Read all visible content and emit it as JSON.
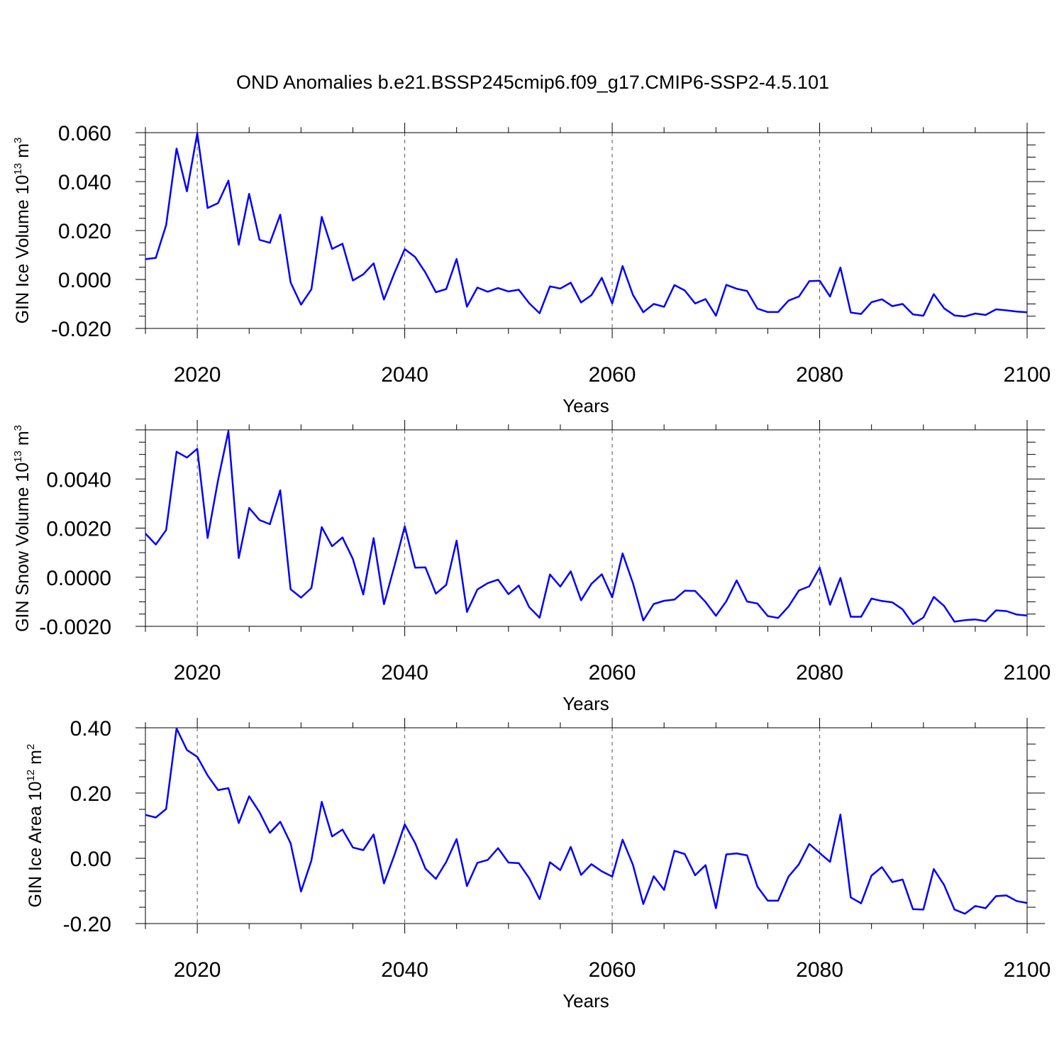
{
  "title": "OND Anomalies b.e21.BSSP245cmip6.f09_g17.CMIP6-SSP2-4.5.101",
  "colors": {
    "series": "#0000ff",
    "frame": "#000000",
    "grid": "#555555"
  },
  "chart_data": [
    {
      "type": "line",
      "xlabel": "Years",
      "ylabel": {
        "base": "GIN Ice Volume 10",
        "exp1": "13",
        "unit": " m",
        "exp2": "3"
      },
      "xlim": [
        2015,
        2100
      ],
      "ylim": [
        -0.02,
        0.06
      ],
      "xticks": [
        2020,
        2040,
        2060,
        2080,
        2100
      ],
      "yticks": [
        -0.02,
        0.0,
        0.02,
        0.04,
        0.06
      ],
      "ytick_labels": [
        "-0.020",
        "0.000",
        "0.020",
        "0.040",
        "0.060"
      ],
      "grid_x": [
        2020,
        2040,
        2060,
        2080
      ],
      "x": [
        2015,
        2016,
        2017,
        2018,
        2019,
        2020,
        2021,
        2022,
        2023,
        2024,
        2025,
        2026,
        2027,
        2028,
        2029,
        2030,
        2031,
        2032,
        2033,
        2034,
        2035,
        2036,
        2037,
        2038,
        2039,
        2040,
        2041,
        2042,
        2043,
        2044,
        2045,
        2046,
        2047,
        2048,
        2049,
        2050,
        2051,
        2052,
        2053,
        2054,
        2055,
        2056,
        2057,
        2058,
        2059,
        2060,
        2061,
        2062,
        2063,
        2064,
        2065,
        2066,
        2067,
        2068,
        2069,
        2070,
        2071,
        2072,
        2073,
        2074,
        2075,
        2076,
        2077,
        2078,
        2079,
        2080,
        2081,
        2082,
        2083,
        2084,
        2085,
        2086,
        2087,
        2088,
        2089,
        2090,
        2091,
        2092,
        2093,
        2094,
        2095,
        2096,
        2097,
        2098,
        2099,
        2100
      ],
      "values": [
        0.0083,
        0.0088,
        0.0222,
        0.0535,
        0.036,
        0.0597,
        0.0292,
        0.0312,
        0.0404,
        0.0142,
        0.035,
        0.0162,
        0.015,
        0.0265,
        -0.0012,
        -0.0103,
        -0.004,
        0.0256,
        0.0125,
        0.0146,
        -0.0004,
        0.0021,
        0.0066,
        -0.0082,
        0.0026,
        0.0124,
        0.0092,
        0.0028,
        -0.0052,
        -0.0039,
        0.0084,
        -0.0111,
        -0.0033,
        -0.005,
        -0.0035,
        -0.0049,
        -0.0042,
        -0.0097,
        -0.0138,
        -0.0028,
        -0.0037,
        -0.0013,
        -0.0094,
        -0.0064,
        0.0007,
        -0.0098,
        0.0055,
        -0.0063,
        -0.0134,
        -0.01,
        -0.0112,
        -0.0023,
        -0.0045,
        -0.0098,
        -0.008,
        -0.0148,
        -0.0022,
        -0.0038,
        -0.0047,
        -0.0119,
        -0.0133,
        -0.0133,
        -0.0086,
        -0.007,
        -0.0007,
        -0.0005,
        -0.007,
        0.0049,
        -0.0135,
        -0.0141,
        -0.0093,
        -0.0081,
        -0.0109,
        -0.01,
        -0.0143,
        -0.0148,
        -0.006,
        -0.0118,
        -0.0147,
        -0.0151,
        -0.0139,
        -0.0145,
        -0.0122,
        -0.0126,
        -0.0131,
        -0.0134
      ]
    },
    {
      "type": "line",
      "xlabel": "Years",
      "ylabel": {
        "base": "GIN Snow Volume 10",
        "exp1": "13",
        "unit": " m",
        "exp2": "3"
      },
      "xlim": [
        2015,
        2100
      ],
      "ylim": [
        -0.002,
        0.006
      ],
      "xticks": [
        2020,
        2040,
        2060,
        2080,
        2100
      ],
      "yticks": [
        -0.002,
        0.0,
        0.002,
        0.004
      ],
      "ytick_labels": [
        "-0.0020",
        "0.0000",
        "0.0020",
        "0.0040"
      ],
      "grid_x": [
        2020,
        2040,
        2060,
        2080
      ],
      "x": [
        2015,
        2016,
        2017,
        2018,
        2019,
        2020,
        2021,
        2022,
        2023,
        2024,
        2025,
        2026,
        2027,
        2028,
        2029,
        2030,
        2031,
        2032,
        2033,
        2034,
        2035,
        2036,
        2037,
        2038,
        2039,
        2040,
        2041,
        2042,
        2043,
        2044,
        2045,
        2046,
        2047,
        2048,
        2049,
        2050,
        2051,
        2052,
        2053,
        2054,
        2055,
        2056,
        2057,
        2058,
        2059,
        2060,
        2061,
        2062,
        2063,
        2064,
        2065,
        2066,
        2067,
        2068,
        2069,
        2070,
        2071,
        2072,
        2073,
        2074,
        2075,
        2076,
        2077,
        2078,
        2079,
        2080,
        2081,
        2082,
        2083,
        2084,
        2085,
        2086,
        2087,
        2088,
        2089,
        2090,
        2091,
        2092,
        2093,
        2094,
        2095,
        2096,
        2097,
        2098,
        2099,
        2100
      ],
      "values": [
        0.00178,
        0.00133,
        0.00192,
        0.00511,
        0.00487,
        0.00523,
        0.0016,
        0.00395,
        0.00595,
        0.00078,
        0.00282,
        0.00233,
        0.00216,
        0.00354,
        -0.00049,
        -0.00083,
        -0.00044,
        0.00204,
        0.00126,
        0.00162,
        0.00074,
        -0.0007,
        0.00159,
        -0.0011,
        0.00045,
        0.00207,
        0.00039,
        0.0004,
        -0.00067,
        -0.00031,
        0.00149,
        -0.00141,
        -0.0005,
        -0.00024,
        -0.0001,
        -0.00069,
        -0.00034,
        -0.00122,
        -0.00165,
        0.00011,
        -0.00038,
        0.00024,
        -0.00094,
        -0.00027,
        0.00012,
        -0.00082,
        0.00097,
        -0.00024,
        -0.00176,
        -0.00109,
        -0.00096,
        -0.00091,
        -0.00055,
        -0.00056,
        -0.00101,
        -0.00157,
        -0.00098,
        -0.00013,
        -0.00099,
        -0.00107,
        -0.00158,
        -0.00166,
        -0.00119,
        -0.00054,
        -0.00037,
        0.00039,
        -0.00112,
        -3e-05,
        -0.00161,
        -0.00161,
        -0.00087,
        -0.00097,
        -0.00102,
        -0.00131,
        -0.00191,
        -0.00164,
        -0.0008,
        -0.00117,
        -0.00181,
        -0.00175,
        -0.00172,
        -0.00179,
        -0.00135,
        -0.00138,
        -0.00152,
        -0.00156
      ]
    },
    {
      "type": "line",
      "xlabel": "Years",
      "ylabel": {
        "base": "GIN Ice Area 10",
        "exp1": "12",
        "unit": " m",
        "exp2": "2"
      },
      "xlim": [
        2015,
        2100
      ],
      "ylim": [
        -0.2,
        0.4
      ],
      "xticks": [
        2020,
        2040,
        2060,
        2080,
        2100
      ],
      "yticks": [
        -0.2,
        0.0,
        0.2,
        0.4
      ],
      "ytick_labels": [
        "-0.20",
        "0.00",
        "0.20",
        "0.40"
      ],
      "grid_x": [
        2020,
        2040,
        2060,
        2080
      ],
      "x": [
        2015,
        2016,
        2017,
        2018,
        2019,
        2020,
        2021,
        2022,
        2023,
        2024,
        2025,
        2026,
        2027,
        2028,
        2029,
        2030,
        2031,
        2032,
        2033,
        2034,
        2035,
        2036,
        2037,
        2038,
        2039,
        2040,
        2041,
        2042,
        2043,
        2044,
        2045,
        2046,
        2047,
        2048,
        2049,
        2050,
        2051,
        2052,
        2053,
        2054,
        2055,
        2056,
        2057,
        2058,
        2059,
        2060,
        2061,
        2062,
        2063,
        2064,
        2065,
        2066,
        2067,
        2068,
        2069,
        2070,
        2071,
        2072,
        2073,
        2074,
        2075,
        2076,
        2077,
        2078,
        2079,
        2080,
        2081,
        2082,
        2083,
        2084,
        2085,
        2086,
        2087,
        2088,
        2089,
        2090,
        2091,
        2092,
        2093,
        2094,
        2095,
        2096,
        2097,
        2098,
        2099,
        2100
      ],
      "values": [
        0.133,
        0.125,
        0.151,
        0.398,
        0.332,
        0.311,
        0.254,
        0.209,
        0.215,
        0.108,
        0.19,
        0.141,
        0.078,
        0.112,
        0.046,
        -0.102,
        -0.007,
        0.173,
        0.067,
        0.088,
        0.033,
        0.025,
        0.073,
        -0.077,
        0.01,
        0.104,
        0.047,
        -0.032,
        -0.063,
        -0.011,
        0.059,
        -0.085,
        -0.014,
        -0.005,
        0.031,
        -0.013,
        -0.015,
        -0.061,
        -0.125,
        -0.012,
        -0.036,
        0.035,
        -0.051,
        -0.018,
        -0.04,
        -0.056,
        0.057,
        -0.02,
        -0.14,
        -0.055,
        -0.097,
        0.023,
        0.013,
        -0.052,
        -0.021,
        -0.153,
        0.012,
        0.015,
        0.009,
        -0.087,
        -0.13,
        -0.13,
        -0.056,
        -0.018,
        0.044,
        0.016,
        -0.011,
        0.134,
        -0.12,
        -0.138,
        -0.053,
        -0.027,
        -0.073,
        -0.065,
        -0.156,
        -0.157,
        -0.033,
        -0.082,
        -0.157,
        -0.17,
        -0.146,
        -0.153,
        -0.116,
        -0.114,
        -0.131,
        -0.137
      ]
    }
  ]
}
